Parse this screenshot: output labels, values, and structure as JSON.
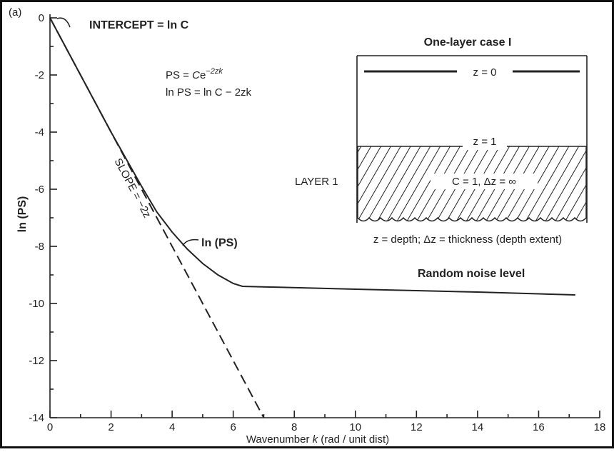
{
  "chart_data": {
    "type": "line",
    "panel_label": "(a)",
    "xlabel": [
      "Wavenumber ",
      "k",
      " (rad / unit dist)"
    ],
    "ylabel": "ln (PS)",
    "xlim": [
      0,
      18
    ],
    "ylim": [
      -14,
      0
    ],
    "xticks": [
      0,
      2,
      4,
      6,
      8,
      10,
      12,
      14,
      16,
      18
    ],
    "yticks": [
      0,
      -2,
      -4,
      -6,
      -8,
      -10,
      -12,
      -14
    ],
    "xminor": [
      1,
      3,
      5,
      7,
      9,
      11,
      13,
      15,
      17
    ],
    "yminor": [
      -1,
      -3,
      -5,
      -7,
      -9,
      -11,
      -13
    ],
    "series": [
      {
        "x": [
          0,
          1,
          2,
          3,
          3.5,
          4,
          4.5,
          5,
          5.5,
          6,
          6.3,
          10,
          14,
          17.2
        ],
        "values": [
          0,
          -2,
          -4,
          -5.9,
          -6.8,
          -7.5,
          -8.1,
          -8.6,
          -9.0,
          -9.3,
          -9.4,
          -9.5,
          -9.6,
          -9.7
        ],
        "color": "#222222",
        "dashed": false
      },
      {
        "x": [
          0,
          7
        ],
        "values": [
          0,
          -14
        ],
        "color": "#222222",
        "dashed": true
      }
    ],
    "annotations": {
      "intercept": "INTERCEPT = ln C",
      "ps_base": "PS = ",
      "ps_c": "C",
      "ps_e": "e",
      "ps_exp": "−2zk",
      "lnps_formula": "ln PS = ln C − 2zk",
      "slope": "SLOPE = −2z",
      "curve_label": "ln (PS)",
      "noise": "Random noise level",
      "inset_title": "One-layer case I",
      "z0": "z = 0",
      "z1": "z = 1",
      "layer": "LAYER 1",
      "layer_props": "C = 1, Δz = ∞",
      "caption": "z = depth; Δz = thickness (depth extent)"
    }
  }
}
